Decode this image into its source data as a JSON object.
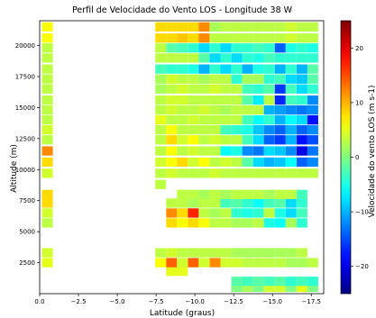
{
  "chart_data": {
    "type": "heatmap",
    "title": "Perfil de Velocidade do Vento LOS - Longitude 38 W",
    "xlabel": "Latitude (graus)",
    "ylabel": "Altitude (m)",
    "colorbar_label": "Velocidade do vento LOS (m s-1)",
    "colormap": "jet",
    "xlim": [
      0.0,
      -18.3
    ],
    "ylim": [
      0,
      22000
    ],
    "clim": [
      -25,
      25
    ],
    "x_ticks": [
      0.0,
      -2.5,
      -5.0,
      -7.5,
      -10.0,
      -12.5,
      -15.0,
      -17.5
    ],
    "x_tick_labels": [
      "0.0",
      "−2.5",
      "−5.0",
      "−7.5",
      "−10.0",
      "−12.5",
      "−15.0",
      "−17.5"
    ],
    "y_ticks": [
      2500,
      5000,
      7500,
      10000,
      12500,
      15000,
      17500,
      20000
    ],
    "y_tick_labels": [
      "2500",
      "5000",
      "7500",
      "10000",
      "12500",
      "15000",
      "17500",
      "20000"
    ],
    "cbar_ticks": [
      20,
      10,
      0,
      -10,
      -20
    ],
    "cbar_tick_labels": [
      "20",
      "10",
      "0",
      "−10",
      "−20"
    ],
    "lat_columns": [
      -0.5,
      -7.8,
      -8.5,
      -9.2,
      -9.9,
      -10.6,
      -11.3,
      -12.0,
      -12.7,
      -13.4,
      -14.1,
      -14.8,
      -15.5,
      -16.2,
      -16.9,
      -17.6
    ],
    "altitude_rows": [
      500,
      1000,
      1800,
      2500,
      3300,
      4000,
      5000,
      5700,
      6500,
      7300,
      8000,
      8800,
      9700,
      10600,
      11500,
      12400,
      13200,
      14000,
      14800,
      15600,
      16500,
      17300,
      18100,
      19000,
      19800,
      20600,
      21500
    ],
    "rows": [
      [
        null,
        null,
        null,
        null,
        null,
        null,
        null,
        null,
        0,
        2,
        0,
        4,
        4,
        0,
        5,
        0
      ],
      [
        null,
        null,
        null,
        null,
        null,
        null,
        null,
        null,
        -2,
        -3,
        -2,
        -3,
        -2,
        -4,
        -3,
        -4
      ],
      [
        null,
        null,
        5,
        5,
        null,
        null,
        null,
        null,
        null,
        null,
        null,
        null,
        null,
        null,
        null,
        null
      ],
      [
        5,
        6,
        14,
        4,
        14,
        4,
        12,
        4,
        4,
        3,
        3,
        3,
        3,
        2,
        2,
        3
      ],
      [
        4,
        3,
        4,
        3,
        3,
        3,
        3,
        3,
        2,
        2,
        2,
        2,
        2,
        2,
        3,
        null
      ],
      [
        null,
        null,
        null,
        null,
        null,
        null,
        null,
        null,
        null,
        null,
        null,
        null,
        null,
        null,
        null,
        null
      ],
      [
        null,
        null,
        null,
        null,
        null,
        null,
        null,
        null,
        null,
        null,
        null,
        null,
        null,
        null,
        null,
        null
      ],
      [
        3,
        null,
        8,
        6,
        8,
        6,
        3,
        3,
        2,
        2,
        3,
        -5,
        -6,
        2,
        -4,
        null
      ],
      [
        4,
        null,
        12,
        8,
        17,
        3,
        2,
        3,
        -4,
        -5,
        -4,
        3,
        -5,
        -8,
        -3,
        null
      ],
      [
        8,
        null,
        3,
        3,
        2,
        3,
        3,
        -3,
        -2,
        -4,
        -6,
        -3,
        -2,
        -8,
        -4,
        null
      ],
      [
        8,
        null,
        null,
        3,
        3,
        2,
        3,
        2,
        3,
        3,
        3,
        2,
        3,
        3,
        -3,
        null
      ],
      [
        null,
        3,
        null,
        null,
        null,
        null,
        null,
        null,
        null,
        null,
        null,
        null,
        null,
        null,
        null,
        null
      ],
      [
        4,
        3,
        4,
        3,
        3,
        3,
        4,
        3,
        3,
        3,
        3,
        3,
        3,
        3,
        3,
        3
      ],
      [
        8,
        4,
        6,
        8,
        4,
        6,
        3,
        4,
        3,
        -2,
        -8,
        -10,
        -9,
        -6,
        -14,
        -12
      ],
      [
        12,
        3,
        6,
        3,
        4,
        3,
        3,
        -6,
        -5,
        -12,
        -13,
        -8,
        -9,
        -12,
        -20,
        -13
      ],
      [
        3,
        3,
        8,
        4,
        6,
        3,
        4,
        3,
        3,
        -3,
        -8,
        -14,
        -16,
        -10,
        -18,
        -15
      ],
      [
        4,
        3,
        6,
        3,
        3,
        3,
        3,
        -3,
        -4,
        -5,
        -9,
        -12,
        -14,
        -10,
        -14,
        -12
      ],
      [
        3,
        5,
        3,
        3,
        4,
        3,
        3,
        3,
        3,
        -3,
        -6,
        -4,
        -10,
        -6,
        -8,
        -18
      ],
      [
        3,
        3,
        4,
        3,
        3,
        4,
        3,
        2,
        3,
        3,
        3,
        -10,
        -11,
        -12,
        -13,
        -12
      ],
      [
        3,
        3,
        4,
        4,
        3,
        3,
        3,
        3,
        3,
        -2,
        -7,
        3,
        -17,
        -3,
        -4,
        -12
      ],
      [
        3,
        2,
        3,
        4,
        3,
        3,
        4,
        3,
        3,
        -3,
        -4,
        -2,
        -16,
        -3,
        -8,
        -4
      ],
      [
        3,
        2,
        4,
        3,
        3,
        2,
        3,
        3,
        -4,
        2,
        2,
        -4,
        -3,
        -8,
        -9,
        -2
      ],
      [
        3,
        -3,
        -4,
        -4,
        -5,
        -10,
        -4,
        -8,
        -4,
        -10,
        -5,
        -4,
        -10,
        -4,
        -10,
        -2
      ],
      [
        3,
        3,
        3,
        3,
        3,
        -2,
        -8,
        -4,
        -8,
        -4,
        -5,
        -3,
        -4,
        -4,
        -4,
        -4
      ],
      [
        3,
        3,
        -2,
        -3,
        -4,
        -8,
        -4,
        -8,
        -4,
        -4,
        -3,
        -4,
        -14,
        -5,
        -4,
        -5
      ],
      [
        6,
        8,
        8,
        9,
        8,
        12,
        3,
        3,
        3,
        3,
        3,
        3,
        3,
        4,
        3,
        3
      ],
      [
        6,
        8,
        8,
        8,
        8,
        12,
        2,
        3,
        3,
        3,
        3,
        3,
        3,
        4,
        3,
        3
      ]
    ],
    "grid": false,
    "legend": "colorbar-right"
  }
}
